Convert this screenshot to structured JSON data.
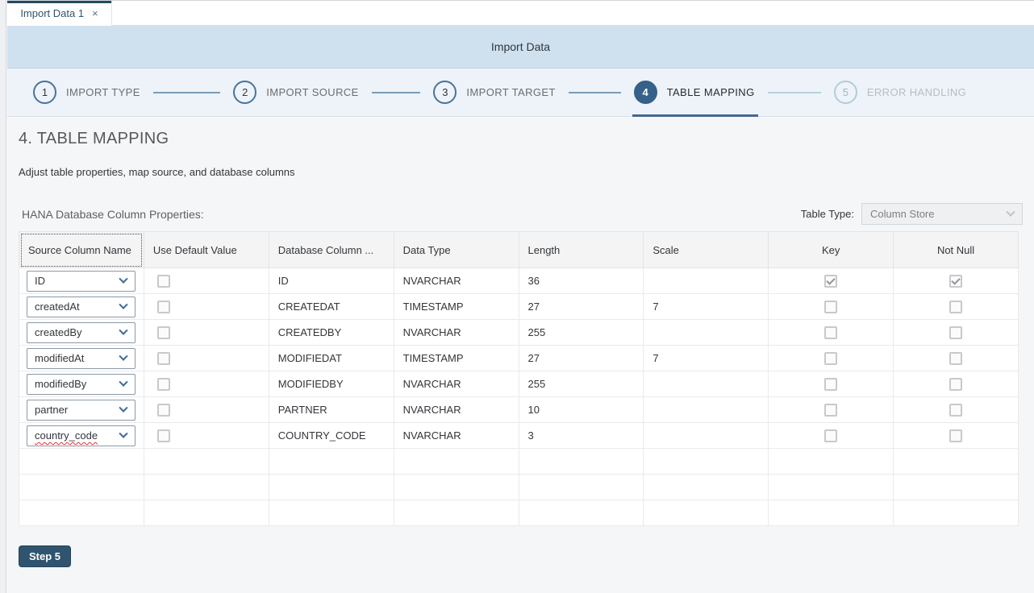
{
  "window": {
    "tab_title": "Import Data 1",
    "close_icon": "×"
  },
  "header": {
    "title": "Import Data"
  },
  "wizard": {
    "steps": [
      {
        "number": "1",
        "label": "IMPORT TYPE",
        "state": "default"
      },
      {
        "number": "2",
        "label": "IMPORT SOURCE",
        "state": "default"
      },
      {
        "number": "3",
        "label": "IMPORT TARGET",
        "state": "default"
      },
      {
        "number": "4",
        "label": "TABLE MAPPING",
        "state": "active"
      },
      {
        "number": "5",
        "label": "ERROR HANDLING",
        "state": "disabled"
      }
    ]
  },
  "section": {
    "title": "4. TABLE MAPPING",
    "subtitle": "Adjust table properties, map source, and database columns"
  },
  "properties": {
    "label": "HANA Database Column Properties:",
    "table_type_label": "Table Type:",
    "table_type_value": "Column Store"
  },
  "table": {
    "columns": [
      "Source Column Name",
      "Use Default Value",
      "Database Column ...",
      "Data Type",
      "Length",
      "Scale",
      "Key",
      "Not Null"
    ],
    "rows": [
      {
        "source": "ID",
        "use_default": false,
        "db_column": "ID",
        "data_type": "NVARCHAR",
        "length": "36",
        "scale": "",
        "key": true,
        "not_null": true
      },
      {
        "source": "createdAt",
        "use_default": false,
        "db_column": "CREATEDAT",
        "data_type": "TIMESTAMP",
        "length": "27",
        "scale": "7",
        "key": false,
        "not_null": false
      },
      {
        "source": "createdBy",
        "use_default": false,
        "db_column": "CREATEDBY",
        "data_type": "NVARCHAR",
        "length": "255",
        "scale": "",
        "key": false,
        "not_null": false
      },
      {
        "source": "modifiedAt",
        "use_default": false,
        "db_column": "MODIFIEDAT",
        "data_type": "TIMESTAMP",
        "length": "27",
        "scale": "7",
        "key": false,
        "not_null": false
      },
      {
        "source": "modifiedBy",
        "use_default": false,
        "db_column": "MODIFIEDBY",
        "data_type": "NVARCHAR",
        "length": "255",
        "scale": "",
        "key": false,
        "not_null": false
      },
      {
        "source": "partner",
        "use_default": false,
        "db_column": "PARTNER",
        "data_type": "NVARCHAR",
        "length": "10",
        "scale": "",
        "key": false,
        "not_null": false
      },
      {
        "source": "country_code",
        "use_default": false,
        "db_column": "COUNTRY_CODE",
        "data_type": "NVARCHAR",
        "length": "3",
        "scale": "",
        "key": false,
        "not_null": false,
        "misspelled": true
      }
    ],
    "empty_row_count": 3
  },
  "footer": {
    "next_button_label": "Step 5"
  },
  "colors": {
    "accent_active_step": "#35618a",
    "header_bar": "#cfe0ef",
    "wizard_bar": "#edf3f9",
    "tab_accent": "#234a5d",
    "next_button": "#2f5470",
    "spellcheck_underline": "#e03030"
  }
}
